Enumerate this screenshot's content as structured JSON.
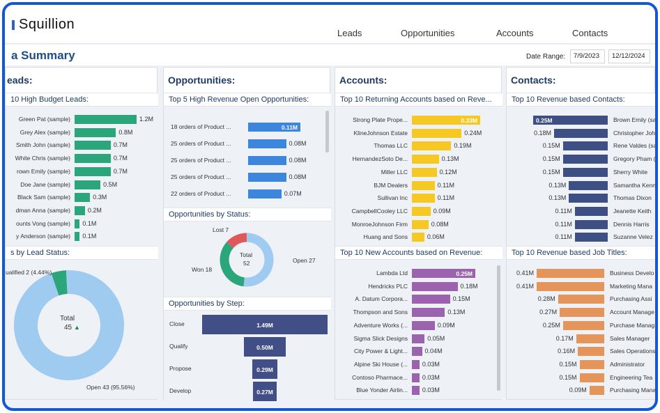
{
  "app": {
    "name": "Squillion"
  },
  "nav": [
    "Leads",
    "Opportunities",
    "Accounts",
    "Contacts"
  ],
  "header": {
    "title": "a Summary",
    "date_range_label": "Date Range:",
    "date_from": "7/9/2023",
    "date_to": "12/12/2024"
  },
  "colors": {
    "leads": "#2aa67a",
    "opps": "#3d86de",
    "accounts": "#f6c823",
    "accounts_new": "#9b62ad",
    "contacts": "#3e4f83",
    "jobs": "#e6955a",
    "funnel": "#414f86",
    "pie_open": "#9ecbef",
    "pie_won": "#2aa67a",
    "pie_lost": "#e0595a",
    "accent_title": "#1f4d8a"
  },
  "leads": {
    "title": "eads:",
    "budget_title": "10 High Budget Leads:",
    "budget": [
      {
        "label": "Green Pat (sample)",
        "value": "1.2M",
        "v": 1.2
      },
      {
        "label": "Grey Alex (sample)",
        "value": "0.8M",
        "v": 0.8
      },
      {
        "label": "Smith John (sample)",
        "value": "0.7M",
        "v": 0.7
      },
      {
        "label": "White Chris (sample)",
        "value": "0.7M",
        "v": 0.7
      },
      {
        "label": "rown Emily (sample)",
        "value": "0.7M",
        "v": 0.7
      },
      {
        "label": "Doe Jane (sample)",
        "value": "0.5M",
        "v": 0.5
      },
      {
        "label": "Black Sam (sample)",
        "value": "0.3M",
        "v": 0.3
      },
      {
        "label": "dman Anna (sample)",
        "value": "0.2M",
        "v": 0.2
      },
      {
        "label": "ounts Vong (sample)",
        "value": "0.1M",
        "v": 0.1
      },
      {
        "label": "y Anderson (sample)",
        "value": "0.1M",
        "v": 0.1
      }
    ],
    "status_title": "s by Lead Status:",
    "donut": {
      "total_label": "Total",
      "total": "45",
      "qualified_label": "ualified 2 (4.44%)",
      "open_label": "Open 43 (95.56%)",
      "qualified": 2,
      "open": 43
    }
  },
  "opportunities": {
    "title": "Opportunities:",
    "top_title": "Top 5 High Revenue Open Opportunities:",
    "top": [
      {
        "label": "18 orders of Product ...",
        "value": "0.11M",
        "v": 0.11,
        "inside": true
      },
      {
        "label": "25 orders of Product ...",
        "value": "0.08M",
        "v": 0.08,
        "inside": false
      },
      {
        "label": "25 orders of Product ...",
        "value": "0.08M",
        "v": 0.08,
        "inside": false
      },
      {
        "label": "25 orders of Product ...",
        "value": "0.08M",
        "v": 0.08,
        "inside": false
      },
      {
        "label": "22 orders of Product ...",
        "value": "0.07M",
        "v": 0.07,
        "inside": false
      }
    ],
    "status_title": "Opportunities by Status:",
    "status": {
      "total_label": "Total",
      "total": "52",
      "lost_label": "Lost 7",
      "won_label": "Won 18",
      "open_label": "Open 27",
      "lost": 7,
      "won": 18,
      "open": 27
    },
    "step_title": "Opportunities by Step:",
    "steps": [
      {
        "label": "Close",
        "value": "1.49M",
        "v": 1.49
      },
      {
        "label": "Qualify",
        "value": "0.50M",
        "v": 0.5
      },
      {
        "label": "Propose",
        "value": "0.29M",
        "v": 0.29
      },
      {
        "label": "Develop",
        "value": "0.27M",
        "v": 0.27
      }
    ]
  },
  "accounts": {
    "title": "Accounts:",
    "returning_title": "Top 10 Returning Accounts based on Reve...",
    "returning": [
      {
        "label": "Strong Plate Prope...",
        "value": "0.33M",
        "v": 0.33,
        "inside": true
      },
      {
        "label": "KlineJohnson Estate",
        "value": "0.24M",
        "v": 0.24,
        "inside": false
      },
      {
        "label": "Thomas LLC",
        "value": "0.19M",
        "v": 0.19,
        "inside": false
      },
      {
        "label": "HernandezSoto De...",
        "value": "0.13M",
        "v": 0.13,
        "inside": false
      },
      {
        "label": "Miller LLC",
        "value": "0.12M",
        "v": 0.12,
        "inside": false
      },
      {
        "label": "BJM Dealers",
        "value": "0.11M",
        "v": 0.11,
        "inside": false
      },
      {
        "label": "Sullivan Inc",
        "value": "0.11M",
        "v": 0.11,
        "inside": false
      },
      {
        "label": "CampbellCooley LLC",
        "value": "0.09M",
        "v": 0.09,
        "inside": false
      },
      {
        "label": "MonroeJohnson Firm",
        "value": "0.08M",
        "v": 0.08,
        "inside": false
      },
      {
        "label": "Huang and Sons",
        "value": "0.06M",
        "v": 0.06,
        "inside": false
      }
    ],
    "new_title": "Top 10 New Accounts based on Revenue:",
    "new": [
      {
        "label": "Lambda Ltd",
        "value": "0.25M",
        "v": 0.25,
        "inside": true
      },
      {
        "label": "Hendricks PLC",
        "value": "0.18M",
        "v": 0.18,
        "inside": false
      },
      {
        "label": "A. Datum Corpora...",
        "value": "0.15M",
        "v": 0.15,
        "inside": false
      },
      {
        "label": "Thompson and Sons",
        "value": "0.13M",
        "v": 0.13,
        "inside": false
      },
      {
        "label": "Adventure Works (...",
        "value": "0.09M",
        "v": 0.09,
        "inside": false
      },
      {
        "label": "Sigma Slick Designs",
        "value": "0.05M",
        "v": 0.05,
        "inside": false
      },
      {
        "label": "City Power & Light...",
        "value": "0.04M",
        "v": 0.04,
        "inside": false
      },
      {
        "label": "Alpine Ski House (...",
        "value": "0.03M",
        "v": 0.03,
        "inside": false
      },
      {
        "label": "Contoso Pharmace...",
        "value": "0.03M",
        "v": 0.03,
        "inside": false
      },
      {
        "label": "Blue Yonder Airlin...",
        "value": "0.03M",
        "v": 0.03,
        "inside": false
      }
    ]
  },
  "contacts": {
    "title": "Contacts:",
    "revenue_title": "Top 10 Revenue based Contacts:",
    "revenue": [
      {
        "label": "Brown Emily (sa",
        "value": "0.25M",
        "v": 0.25,
        "inside": true
      },
      {
        "label": "Christopher Joh",
        "value": "0.18M",
        "v": 0.18,
        "inside": false
      },
      {
        "label": "Rene Valdes (sa",
        "value": "0.15M",
        "v": 0.15,
        "inside": false
      },
      {
        "label": "Gregory Pham (",
        "value": "0.15M",
        "v": 0.15,
        "inside": false
      },
      {
        "label": "Sherry White",
        "value": "0.15M",
        "v": 0.15,
        "inside": false
      },
      {
        "label": "Samantha Kenn",
        "value": "0.13M",
        "v": 0.13,
        "inside": false
      },
      {
        "label": "Thomas Dixon",
        "value": "0.13M",
        "v": 0.13,
        "inside": false
      },
      {
        "label": "Jeanette Keith",
        "value": "0.11M",
        "v": 0.11,
        "inside": false
      },
      {
        "label": "Dennis Harris",
        "value": "0.11M",
        "v": 0.11,
        "inside": false
      },
      {
        "label": "Suzanne Velez",
        "value": "0.11M",
        "v": 0.11,
        "inside": false
      }
    ],
    "jobs_title": "Top 10 Revenue based Job Titles:",
    "jobs": [
      {
        "label": "Business Develo",
        "value": "0.41M",
        "v": 0.41
      },
      {
        "label": "Marketing Mana",
        "value": "0.41M",
        "v": 0.41
      },
      {
        "label": "Purchasing Assi",
        "value": "0.28M",
        "v": 0.28
      },
      {
        "label": "Account Manage",
        "value": "0.27M",
        "v": 0.27
      },
      {
        "label": "Purchase Manag",
        "value": "0.25M",
        "v": 0.25
      },
      {
        "label": "Sales Manager",
        "value": "0.17M",
        "v": 0.17
      },
      {
        "label": "Sales Operations",
        "value": "0.16M",
        "v": 0.16
      },
      {
        "label": "Administrator",
        "value": "0.15M",
        "v": 0.15
      },
      {
        "label": "Engineering Tea",
        "value": "0.15M",
        "v": 0.15
      },
      {
        "label": "Purchasing Mana",
        "value": "0.09M",
        "v": 0.09
      }
    ]
  }
}
